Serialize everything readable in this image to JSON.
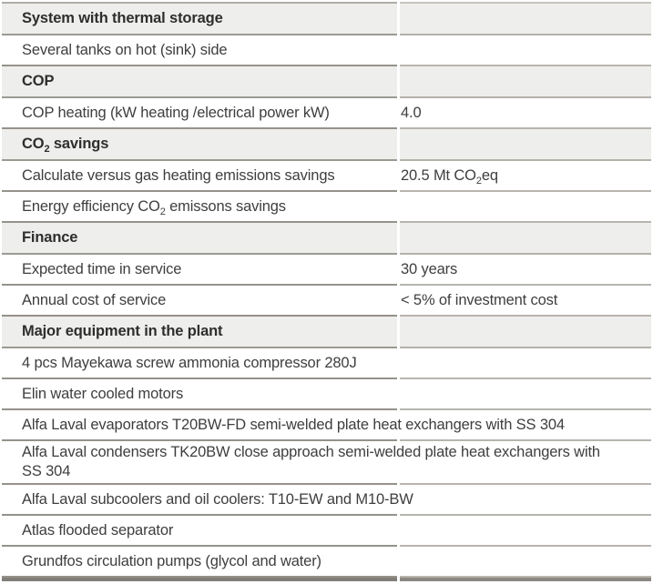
{
  "colors": {
    "header_band": "#eeeeec",
    "border_left_column": "#95928b",
    "border_right_column": "#b8b5ae",
    "top_hairline": "#b0ada6",
    "bottom_bar": "#817e79",
    "body_text": "#3f3e3e",
    "header_text": "#2f2e2e",
    "background": "#ffffff"
  },
  "rows": [
    {
      "type": "header",
      "label": "System with thermal storage"
    },
    {
      "type": "full",
      "label": "Several tanks on hot (sink) side"
    },
    {
      "type": "header",
      "label": "COP"
    },
    {
      "type": "pair",
      "label": "COP heating (kW heating /electrical power kW)",
      "value": "4.0"
    },
    {
      "type": "header",
      "label_pre": "CO",
      "label_sub": "2",
      "label_post": " savings"
    },
    {
      "type": "pair",
      "label": "Calculate versus gas heating emissions savings",
      "value_pre": "20.5 Mt CO",
      "value_sub": "2",
      "value_post": "eq"
    },
    {
      "type": "full",
      "label_pre": "Energy efficiency CO",
      "label_sub": "2",
      "label_post": " emissons savings"
    },
    {
      "type": "header",
      "label": "Finance"
    },
    {
      "type": "pair",
      "label": "Expected time in service",
      "value": "30 years"
    },
    {
      "type": "pair",
      "label": "Annual cost of service",
      "value": "< 5% of investment cost"
    },
    {
      "type": "header",
      "label": "Major equipment in the plant"
    },
    {
      "type": "full",
      "label": "4 pcs Mayekawa screw ammonia compressor 280J"
    },
    {
      "type": "full",
      "label": "Elin water cooled motors"
    },
    {
      "type": "full",
      "label": "Alfa Laval evaporators T20BW-FD semi-welded plate heat exchangers with SS 304"
    },
    {
      "type": "full",
      "label": "Alfa Laval condensers TK20BW close approach semi-welded plate heat exchangers with SS 304"
    },
    {
      "type": "full",
      "label": "Alfa Laval subcoolers and oil coolers: T10-EW and M10-BW"
    },
    {
      "type": "full",
      "label": "Atlas flooded separator"
    },
    {
      "type": "full",
      "label": "Grundfos circulation pumps (glycol and water)"
    }
  ]
}
